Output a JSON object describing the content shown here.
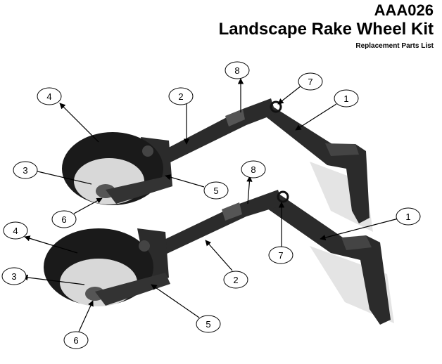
{
  "header": {
    "code": "AAA026",
    "title": "Landscape Rake Wheel Kit",
    "subtitle": "Replacement Parts List"
  },
  "callouts": {
    "upper": {
      "c1": "1",
      "c2": "2",
      "c3": "3",
      "c4": "4",
      "c5": "5",
      "c6": "6",
      "c7": "7",
      "c8": "8"
    },
    "lower": {
      "c1": "1",
      "c2": "2",
      "c3": "3",
      "c4": "4",
      "c5": "5",
      "c6": "6",
      "c7": "7",
      "c8": "8"
    }
  },
  "colors": {
    "metal": "#2b2b2b",
    "tire": "#1a1a1a",
    "rim": "#d8d8d8",
    "shadow": "#e4e4e4"
  }
}
